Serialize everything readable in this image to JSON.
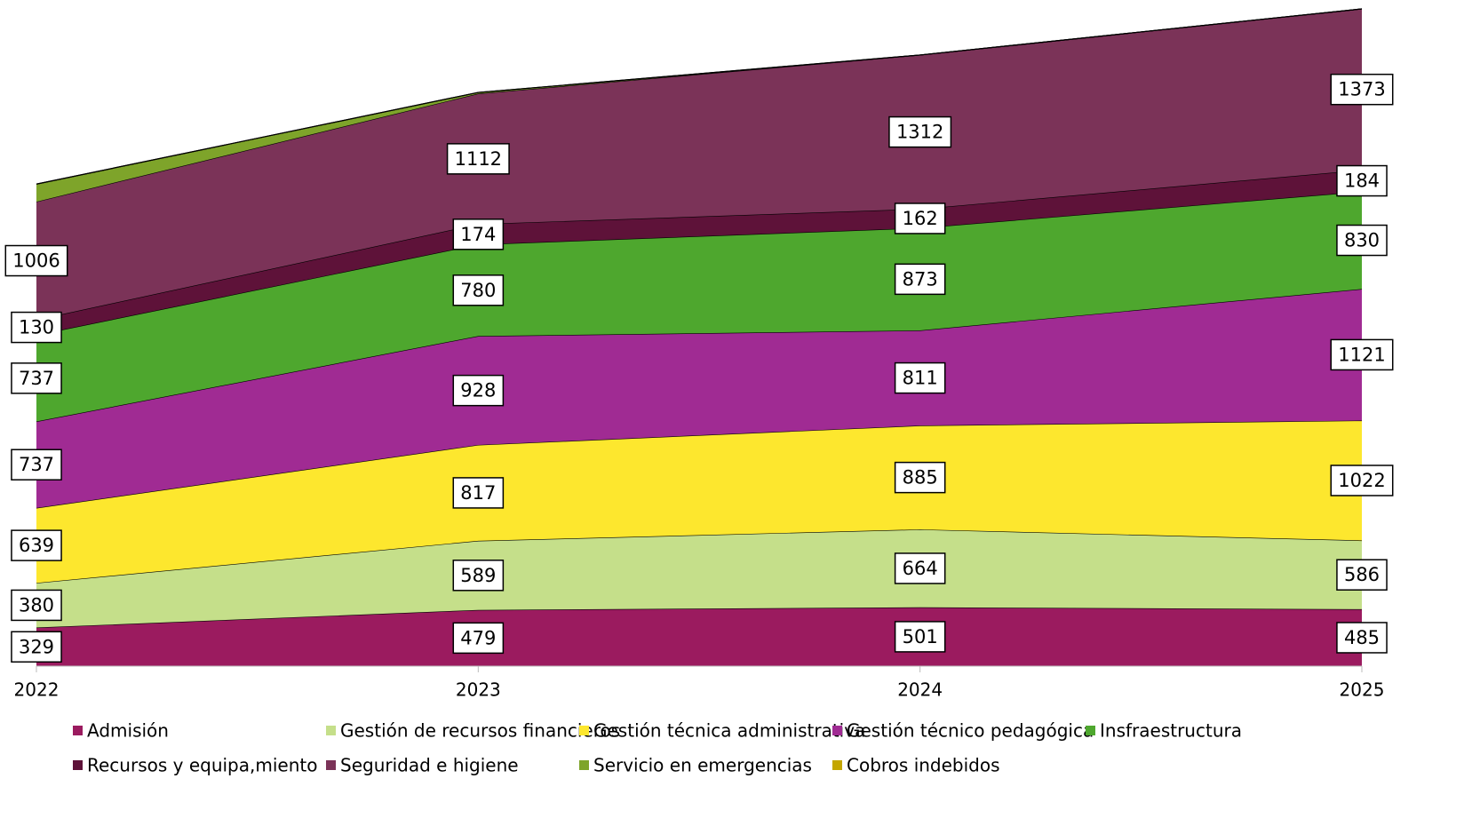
{
  "chart_data": {
    "type": "area",
    "stacked": true,
    "categories": [
      "2022",
      "2023",
      "2024",
      "2025"
    ],
    "series": [
      {
        "name": "Admisión",
        "color": "#9b1b5f",
        "values": [
          329,
          479,
          501,
          485
        ]
      },
      {
        "name": "Gestión de recursos financieros",
        "color": "#c5df8a",
        "values": [
          380,
          589,
          664,
          586
        ]
      },
      {
        "name": "Gestión técnica administrativa",
        "color": "#fde72e",
        "values": [
          639,
          817,
          885,
          1022
        ]
      },
      {
        "name": "Gestión técnico pedagógica",
        "color": "#a02b93",
        "values": [
          737,
          928,
          811,
          1121
        ]
      },
      {
        "name": "Insfraestructura",
        "color": "#4ea72e",
        "values": [
          737,
          780,
          873,
          830
        ]
      },
      {
        "name": "Recursos y equipa,miento",
        "color": "#5e1239",
        "values": [
          130,
          174,
          162,
          184
        ]
      },
      {
        "name": "Seguridad e higiene",
        "color": "#7b3358",
        "values": [
          1006,
          1112,
          1312,
          1373
        ]
      },
      {
        "name": "Servicio en emergencias",
        "color": "#7ea42a",
        "values": [
          150,
          10,
          0,
          0
        ],
        "show_labels": false
      },
      {
        "name": "Cobros indebidos",
        "color": "#c4a600",
        "values": [
          0,
          0,
          0,
          0
        ],
        "show_labels": false
      }
    ],
    "legend": "bottom"
  }
}
